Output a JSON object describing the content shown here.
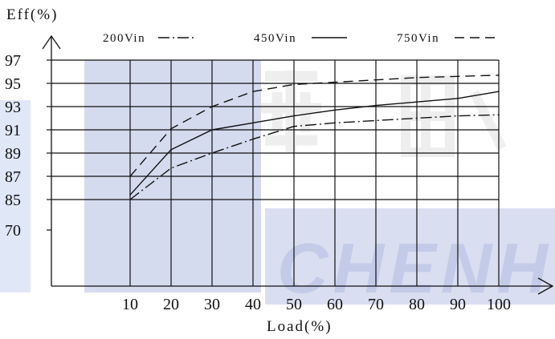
{
  "chart_data": {
    "type": "line",
    "title": "",
    "ylabel": "Eff(%)",
    "xlabel": "Load(%)",
    "x": [
      10,
      20,
      30,
      40,
      50,
      60,
      70,
      80,
      90,
      100
    ],
    "xlim": [
      0,
      100
    ],
    "x_ticks": [
      10,
      20,
      30,
      40,
      50,
      60,
      70,
      80,
      90,
      100
    ],
    "y_ticks": [
      85,
      87,
      89,
      91,
      93,
      95,
      97
    ],
    "y_lone_tick": 70,
    "ylim": [
      85,
      97
    ],
    "grid": true,
    "legend_position": "top",
    "series": [
      {
        "name": "200Vin",
        "line_style": "dash-dot",
        "values": [
          85.0,
          87.7,
          89.0,
          90.2,
          91.3,
          91.6,
          91.8,
          92.0,
          92.2,
          92.3
        ]
      },
      {
        "name": "450Vin",
        "line_style": "solid",
        "values": [
          85.4,
          89.3,
          91.0,
          91.6,
          92.2,
          92.7,
          93.1,
          93.4,
          93.7,
          94.3
        ]
      },
      {
        "name": "750Vin",
        "line_style": "dashed",
        "values": [
          87.0,
          91.1,
          93.0,
          94.3,
          94.9,
          95.1,
          95.3,
          95.5,
          95.6,
          95.7
        ]
      }
    ]
  },
  "watermark": {
    "latin_text": "CHENHU",
    "band_color": "#1c3ba8",
    "glyph_color": "#c4c4c4"
  }
}
